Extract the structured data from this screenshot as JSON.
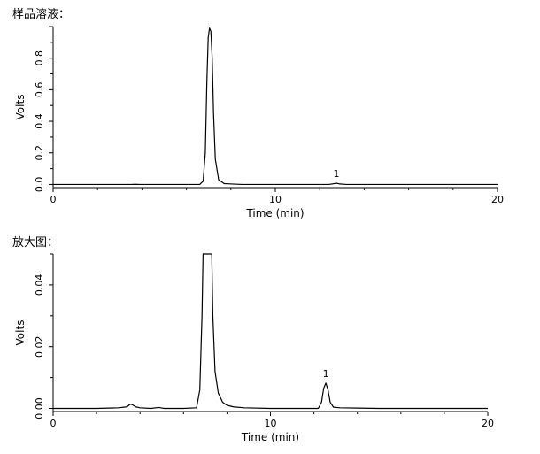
{
  "chart_data": [
    {
      "type": "line",
      "heading": "样品溶液：",
      "xlabel": "Time (min)",
      "ylabel": "Volts",
      "xlim": [
        0,
        20
      ],
      "ylim": [
        -0.02,
        1.0
      ],
      "x_ticks": [
        "0",
        "10",
        "20"
      ],
      "y_ticks": [
        "0.0",
        "0.2",
        "0.4",
        "0.6",
        "0.8"
      ],
      "grid": false,
      "series": [
        {
          "x": [
            0,
            3.5,
            3.7,
            3.9,
            5.0,
            6.6,
            6.75,
            6.85,
            6.92,
            6.98,
            7.04,
            7.1,
            7.16,
            7.22,
            7.3,
            7.45,
            7.7,
            8.5,
            12.4,
            12.6,
            12.75,
            12.9,
            13.2,
            16,
            20
          ],
          "y": [
            0.0,
            0.0,
            0.001,
            0.0,
            0.0,
            0.0,
            0.02,
            0.2,
            0.65,
            0.93,
            0.99,
            0.97,
            0.8,
            0.45,
            0.16,
            0.03,
            0.005,
            0.0,
            0.0,
            0.004,
            0.008,
            0.003,
            0.0,
            0.0,
            0.0
          ]
        }
      ],
      "annotations": [
        {
          "text": "1",
          "x": 12.75,
          "y": 0.008
        }
      ]
    },
    {
      "type": "line",
      "heading": "放大图：",
      "xlabel": "Time (min)",
      "ylabel": "Volts",
      "xlim": [
        0,
        20
      ],
      "ylim": [
        -0.001,
        0.05
      ],
      "x_ticks": [
        "0",
        "10",
        "20"
      ],
      "y_ticks": [
        "0.00",
        "0.02",
        "0.04"
      ],
      "grid": false,
      "series": [
        {
          "x": [
            0,
            1.0,
            2.0,
            3.0,
            3.4,
            3.55,
            3.65,
            3.8,
            4.0,
            4.5,
            4.85,
            4.95,
            5.1,
            6.0,
            6.6,
            6.75,
            6.85,
            6.9,
            7.3,
            7.35,
            7.45,
            7.6,
            7.8,
            8.0,
            8.3,
            8.8,
            10.0,
            11.0,
            12.2,
            12.35,
            12.45,
            12.55,
            12.65,
            12.75,
            12.9,
            13.2,
            14.0,
            15.0,
            20.0
          ],
          "y": [
            0.0,
            0.0,
            0.0,
            0.0002,
            0.0005,
            0.0014,
            0.0012,
            0.0005,
            0.0002,
            0.0,
            0.0003,
            0.0002,
            0.0,
            0.0,
            0.0002,
            0.006,
            0.03,
            0.05,
            0.05,
            0.03,
            0.012,
            0.005,
            0.002,
            0.001,
            0.0005,
            0.0002,
            0.0,
            0.0,
            0.0,
            0.002,
            0.0065,
            0.0082,
            0.006,
            0.002,
            0.0004,
            0.0002,
            0.0001,
            0.0,
            0.0
          ]
        }
      ],
      "annotations": [
        {
          "text": "1",
          "x": 12.55,
          "y": 0.0082
        }
      ]
    }
  ]
}
